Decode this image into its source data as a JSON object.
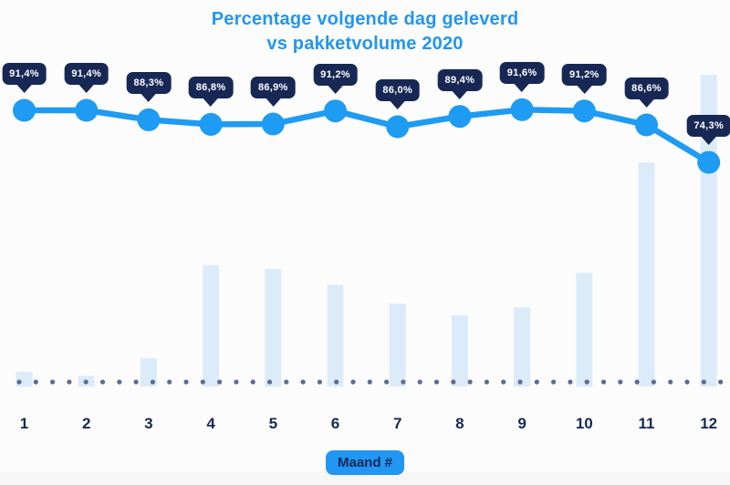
{
  "title": {
    "line1": "Percentage volgende dag geleverd",
    "line2": "vs pakketvolume 2020"
  },
  "x_axis": {
    "badge_label": "Maand #",
    "tick_labels": [
      "1",
      "2",
      "3",
      "4",
      "5",
      "6",
      "7",
      "8",
      "9",
      "10",
      "11",
      "12"
    ]
  },
  "colors": {
    "accent_blue": "#2196F3",
    "line_blue": "#1E9BF3",
    "navy": "#182855",
    "bar_light_blue": "#DCEBFA",
    "baseline_dot": "#5B6C95",
    "background": "#FCFCFC",
    "bottom_strip": "#F6F6F7"
  },
  "chart_data": {
    "type": "combo",
    "title": "Percentage volgende dag geleverd vs pakketvolume 2020",
    "xlabel": "Maand #",
    "ylabel": "",
    "categories": [
      "1",
      "2",
      "3",
      "4",
      "5",
      "6",
      "7",
      "8",
      "9",
      "10",
      "11",
      "12"
    ],
    "grid": false,
    "legend": "none",
    "series": [
      {
        "name": "Percentage volgende dag geleverd",
        "type": "line",
        "unit": "percent",
        "values": [
          91.4,
          91.4,
          88.3,
          86.8,
          86.9,
          91.2,
          86.0,
          89.4,
          91.6,
          91.2,
          86.6,
          74.3
        ],
        "value_labels": [
          "91,4%",
          "91,4%",
          "88,3%",
          "86,8%",
          "86,9%",
          "91,2%",
          "86,0%",
          "89,4%",
          "91,6%",
          "91,2%",
          "86,6%",
          "74,3%"
        ]
      },
      {
        "name": "Pakketvolume 2020",
        "type": "bar",
        "unit": "relative-index-max-100",
        "values": [
          4.7,
          3.5,
          9.1,
          38.9,
          37.7,
          32.7,
          26.6,
          22.8,
          25.4,
          36.5,
          71.9,
          100
        ]
      }
    ]
  }
}
